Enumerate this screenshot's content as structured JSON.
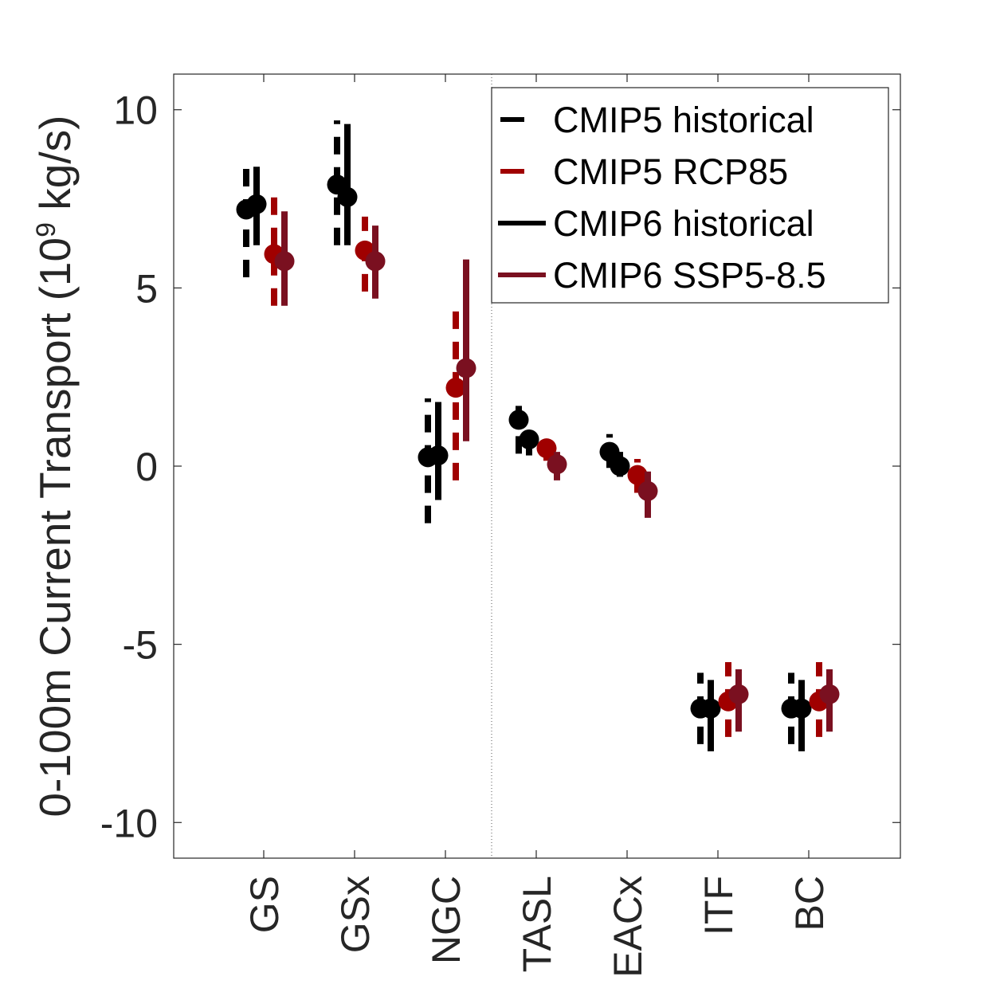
{
  "chart_data": {
    "type": "scatter",
    "ylabel": "0-100m Current Transport (10",
    "ylabel_superscript": "9",
    "ylabel_suffix": " kg/s)",
    "categories": [
      "GS",
      "GSx",
      "NGC",
      "TASL",
      "EACx",
      "ITF",
      "BC"
    ],
    "ylim": [
      -11,
      11
    ],
    "yticks": [
      10,
      5,
      0,
      -5,
      -10
    ],
    "ytick_labels": [
      "10",
      "5",
      "0",
      "-5",
      "-10"
    ],
    "grid": false,
    "separator_after_category": "NGC",
    "legend_position": "top-right",
    "series": [
      {
        "name": "CMIP5 historical",
        "color": "#000000",
        "style": "dashed",
        "values": [
          7.2,
          7.9,
          0.25,
          1.3,
          0.4,
          -6.8,
          -6.8
        ],
        "err_low": [
          5.3,
          6.2,
          -1.6,
          0.35,
          -0.05,
          -7.8,
          -7.8
        ],
        "err_high": [
          8.6,
          9.7,
          1.9,
          1.75,
          0.9,
          -5.8,
          -5.8
        ]
      },
      {
        "name": "CMIP6 historical",
        "color": "#000000",
        "style": "solid",
        "values": [
          7.35,
          7.55,
          0.3,
          0.75,
          0.0,
          -6.8,
          -6.8
        ],
        "err_low": [
          6.2,
          6.2,
          -0.95,
          0.3,
          -0.3,
          -8.0,
          -8.0
        ],
        "err_high": [
          8.4,
          9.6,
          1.8,
          1.0,
          0.4,
          -6.0,
          -6.0
        ]
      },
      {
        "name": "CMIP5 RCP85",
        "color": "#a00000",
        "style": "dashed",
        "values": [
          5.95,
          6.05,
          2.2,
          0.5,
          -0.25,
          -6.6,
          -6.6
        ],
        "err_low": [
          4.5,
          4.9,
          -0.4,
          0.15,
          -0.75,
          -7.6,
          -7.6
        ],
        "err_high": [
          7.55,
          7.0,
          4.35,
          0.8,
          0.2,
          -5.5,
          -5.5
        ]
      },
      {
        "name": "CMIP6 SSP5-8.5",
        "color": "#7a1020",
        "style": "solid",
        "values": [
          5.75,
          5.75,
          2.75,
          0.05,
          -0.7,
          -6.4,
          -6.4
        ],
        "err_low": [
          4.5,
          4.7,
          0.7,
          -0.4,
          -1.45,
          -7.45,
          -7.45
        ],
        "err_high": [
          7.15,
          6.75,
          5.8,
          0.4,
          -0.15,
          -5.7,
          -5.7
        ]
      }
    ],
    "legend_order": [
      "CMIP5 historical",
      "CMIP5 RCP85",
      "CMIP6 historical",
      "CMIP6 SSP5-8.5"
    ]
  }
}
